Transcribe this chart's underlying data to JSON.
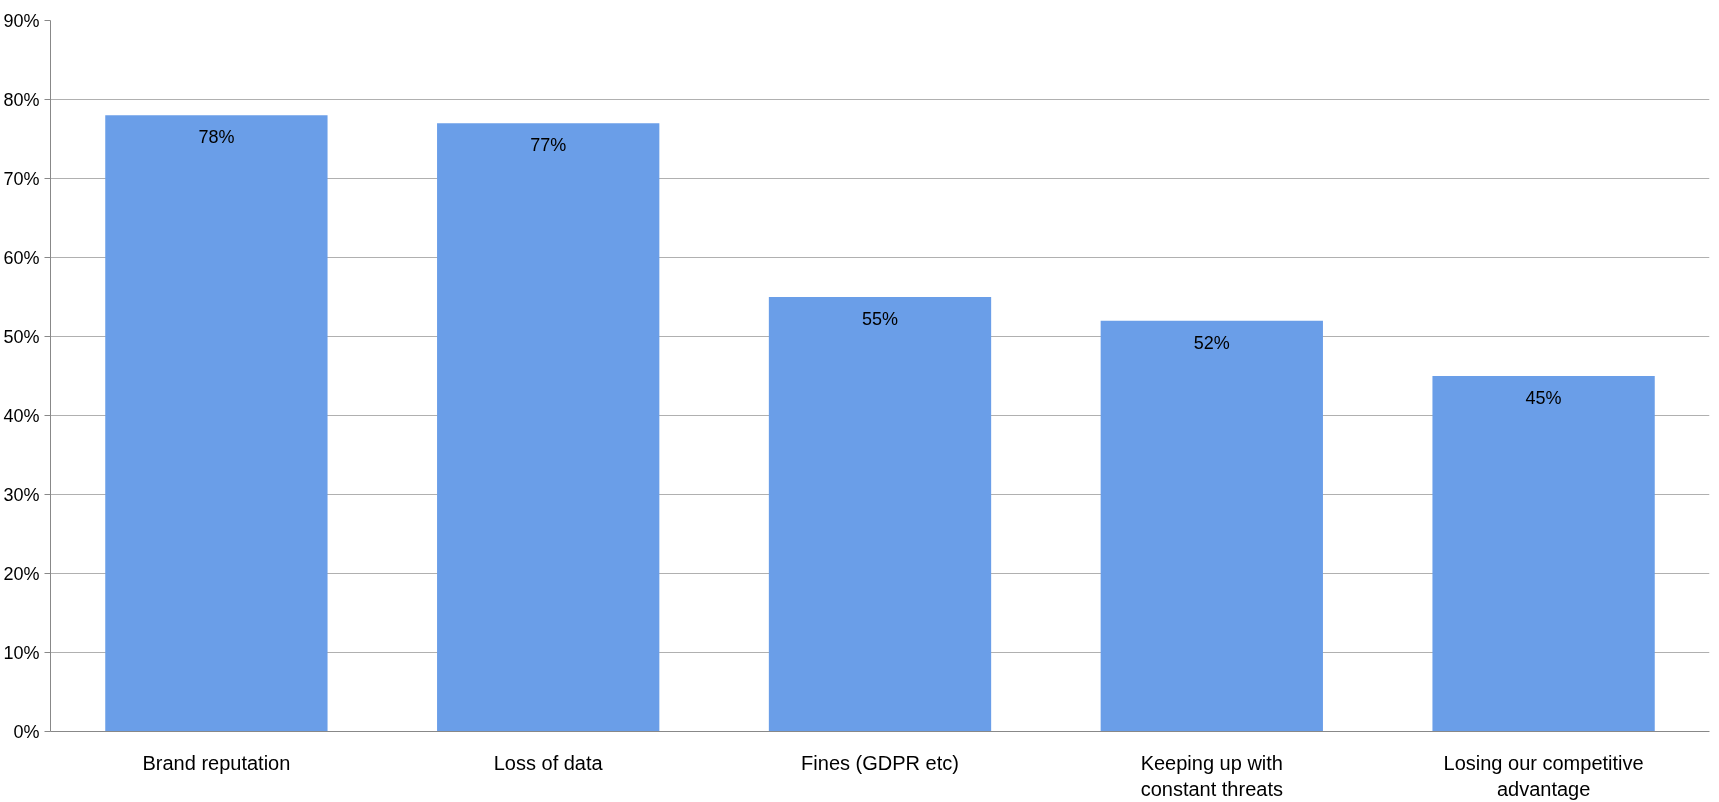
{
  "chart_data": {
    "type": "bar",
    "categories": [
      "Brand reputation",
      "Loss of data",
      "Fines (GDPR etc)",
      "Keeping up with constant threats",
      "Losing our competitive advantage"
    ],
    "values": [
      78,
      77,
      55,
      52,
      45
    ],
    "value_labels": [
      "78%",
      "77%",
      "55%",
      "52%",
      "45%"
    ],
    "color": "#6a9ee8",
    "ylim": [
      0,
      90
    ],
    "yticks": [
      {
        "value": 0,
        "label": "0%"
      },
      {
        "value": 10,
        "label": "10%"
      },
      {
        "value": 20,
        "label": "20%"
      },
      {
        "value": 30,
        "label": "30%"
      },
      {
        "value": 40,
        "label": "40%"
      },
      {
        "value": 50,
        "label": "50%"
      },
      {
        "value": 60,
        "label": "60%"
      },
      {
        "value": 70,
        "label": "70%"
      },
      {
        "value": 80,
        "label": "80%"
      },
      {
        "value": 90,
        "label": "90%"
      }
    ],
    "grid": "y"
  }
}
